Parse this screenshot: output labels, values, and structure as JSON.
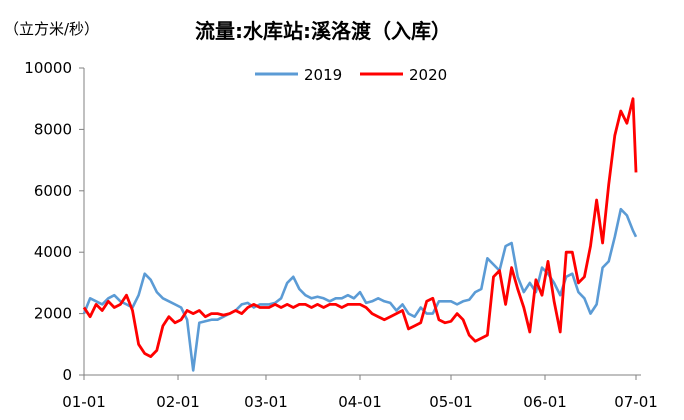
{
  "title": "流量:水库站:溪洛渡（入库）",
  "unit": "（立方米/秒）",
  "colors": {
    "s2019": "#5B9BD5",
    "s2020": "#FF0000",
    "axis": "#808080"
  },
  "chart_data": {
    "type": "line",
    "title": "流量:水库站:溪洛渡（入库）",
    "ylabel": "（立方米/秒）",
    "xlabel": "",
    "ylim": [
      0,
      10000
    ],
    "yticks": [
      0,
      2000,
      4000,
      6000,
      8000,
      10000
    ],
    "xticks": [
      "01-01",
      "02-01",
      "03-01",
      "04-01",
      "05-01",
      "06-01",
      "07-01"
    ],
    "legend": [
      "2019",
      "2020"
    ],
    "legend_position": "top-center",
    "grid": false,
    "series": [
      {
        "name": "2019",
        "x": [
          "01-01",
          "01-03",
          "01-05",
          "01-07",
          "01-09",
          "01-11",
          "01-13",
          "01-15",
          "01-17",
          "01-19",
          "01-21",
          "01-23",
          "01-25",
          "01-27",
          "01-29",
          "01-31",
          "02-02",
          "02-04",
          "02-06",
          "02-08",
          "02-10",
          "02-12",
          "02-14",
          "02-16",
          "02-18",
          "02-20",
          "02-22",
          "02-24",
          "02-26",
          "02-28",
          "03-02",
          "03-04",
          "03-06",
          "03-08",
          "03-10",
          "03-12",
          "03-14",
          "03-16",
          "03-18",
          "03-20",
          "03-22",
          "03-24",
          "03-26",
          "03-28",
          "03-30",
          "04-01",
          "04-03",
          "04-05",
          "04-07",
          "04-09",
          "04-11",
          "04-13",
          "04-15",
          "04-17",
          "04-19",
          "04-21",
          "04-23",
          "04-25",
          "04-27",
          "04-29",
          "05-01",
          "05-03",
          "05-05",
          "05-07",
          "05-09",
          "05-11",
          "05-13",
          "05-15",
          "05-17",
          "05-19",
          "05-21",
          "05-23",
          "05-25",
          "05-27",
          "05-29",
          "05-31",
          "06-02",
          "06-04",
          "06-06",
          "06-08",
          "06-10",
          "06-12",
          "06-14",
          "06-16",
          "06-18",
          "06-20",
          "06-22",
          "06-24",
          "06-26",
          "06-28",
          "06-30",
          "07-01"
        ],
        "values": [
          2000,
          2500,
          2400,
          2300,
          2500,
          2600,
          2400,
          2300,
          2200,
          2600,
          3300,
          3100,
          2700,
          2500,
          2400,
          2300,
          2200,
          1800,
          150,
          1700,
          1750,
          1800,
          1800,
          1900,
          2000,
          2100,
          2300,
          2350,
          2200,
          2300,
          2300,
          2350,
          2500,
          3000,
          3200,
          2800,
          2600,
          2500,
          2550,
          2500,
          2400,
          2500,
          2500,
          2600,
          2500,
          2700,
          2350,
          2400,
          2500,
          2400,
          2350,
          2100,
          2300,
          2000,
          1900,
          2200,
          2000,
          2000,
          2400,
          2400,
          2400,
          2300,
          2400,
          2450,
          2700,
          2800,
          3800,
          3600,
          3400,
          4200,
          4300,
          3200,
          2700,
          3000,
          2700,
          3500,
          3300,
          3000,
          2600,
          3200,
          3300,
          2700,
          2500,
          2000,
          2300,
          3500,
          3700,
          4500,
          5400,
          5200,
          4700,
          4500
        ]
      },
      {
        "name": "2020",
        "x": [
          "01-01",
          "01-03",
          "01-05",
          "01-07",
          "01-09",
          "01-11",
          "01-13",
          "01-15",
          "01-17",
          "01-19",
          "01-21",
          "01-23",
          "01-25",
          "01-27",
          "01-29",
          "01-31",
          "02-02",
          "02-04",
          "02-06",
          "02-08",
          "02-10",
          "02-12",
          "02-14",
          "02-16",
          "02-18",
          "02-20",
          "02-22",
          "02-24",
          "02-26",
          "02-28",
          "03-02",
          "03-04",
          "03-06",
          "03-08",
          "03-10",
          "03-12",
          "03-14",
          "03-16",
          "03-18",
          "03-20",
          "03-22",
          "03-24",
          "03-26",
          "03-28",
          "03-30",
          "04-01",
          "04-03",
          "04-05",
          "04-07",
          "04-09",
          "04-11",
          "04-13",
          "04-15",
          "04-17",
          "04-19",
          "04-21",
          "04-23",
          "04-25",
          "04-27",
          "04-29",
          "05-01",
          "05-03",
          "05-05",
          "05-07",
          "05-09",
          "05-11",
          "05-13",
          "05-15",
          "05-17",
          "05-19",
          "05-21",
          "05-23",
          "05-25",
          "05-27",
          "05-29",
          "05-31",
          "06-02",
          "06-04",
          "06-06",
          "06-08",
          "06-10",
          "06-12",
          "06-14",
          "06-16",
          "06-18",
          "06-20",
          "06-22",
          "06-24",
          "06-26",
          "06-28",
          "06-30",
          "07-01"
        ],
        "values": [
          2200,
          1900,
          2300,
          2100,
          2400,
          2200,
          2300,
          2600,
          2100,
          1000,
          700,
          600,
          800,
          1600,
          1900,
          1700,
          1800,
          2100,
          2000,
          2100,
          1900,
          2000,
          2000,
          1950,
          2000,
          2100,
          2000,
          2200,
          2300,
          2200,
          2200,
          2300,
          2200,
          2300,
          2200,
          2300,
          2300,
          2200,
          2300,
          2200,
          2300,
          2300,
          2200,
          2300,
          2300,
          2300,
          2200,
          2000,
          1900,
          1800,
          1900,
          2000,
          2100,
          1500,
          1600,
          1700,
          2400,
          2500,
          1800,
          1700,
          1750,
          2000,
          1800,
          1300,
          1100,
          1200,
          1300,
          3200,
          3400,
          2300,
          3500,
          2800,
          2200,
          1400,
          3100,
          2600,
          3700,
          2400,
          1400,
          4000,
          4000,
          3000,
          3200,
          4200,
          5700,
          4300,
          6200,
          7800,
          8600,
          8200,
          9000,
          6600
        ]
      }
    ]
  }
}
